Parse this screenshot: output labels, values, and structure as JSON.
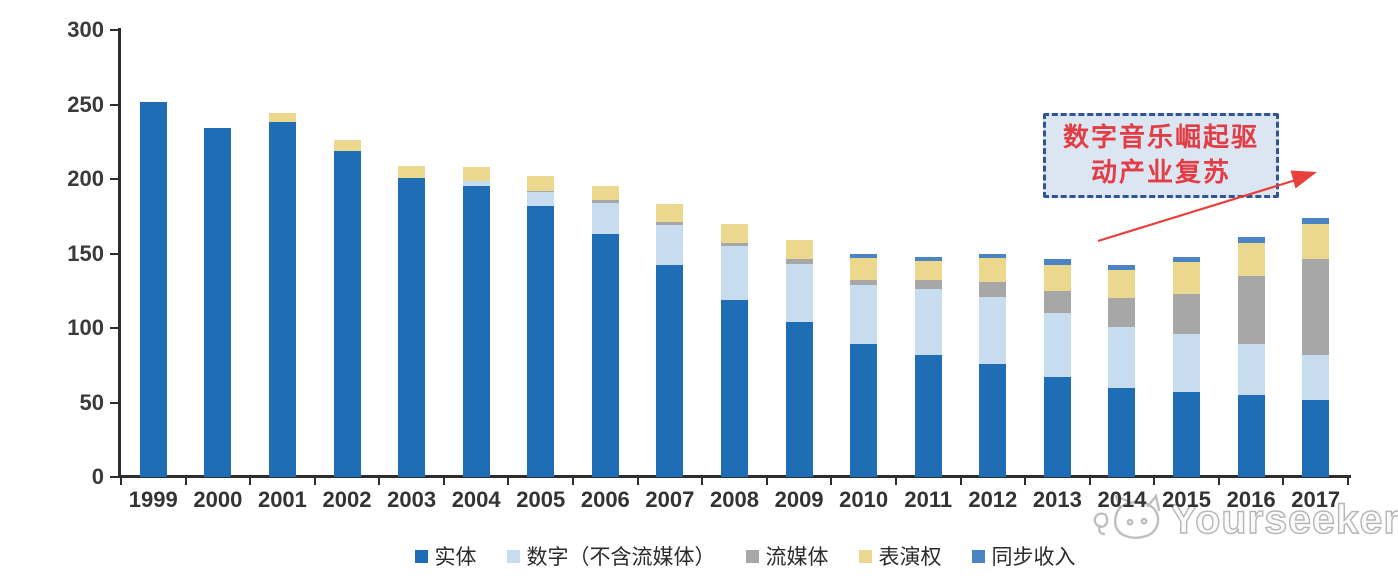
{
  "chart_data": {
    "type": "bar",
    "stacked": true,
    "title": "",
    "xlabel": "",
    "ylabel": "",
    "ylim": [
      0,
      300
    ],
    "yticks": [
      0,
      50,
      100,
      150,
      200,
      250,
      300
    ],
    "grid": false,
    "legend_position": "bottom",
    "categories": [
      "1999",
      "2000",
      "2001",
      "2002",
      "2003",
      "2004",
      "2005",
      "2006",
      "2007",
      "2008",
      "2009",
      "2010",
      "2011",
      "2012",
      "2013",
      "2014",
      "2015",
      "2016",
      "2017"
    ],
    "series": [
      {
        "key": "physical",
        "name": "实体",
        "color": "#1f6db4",
        "values": [
          252,
          234,
          238,
          219,
          201,
          195,
          182,
          163,
          142,
          119,
          104,
          89,
          82,
          76,
          67,
          60,
          57,
          55,
          52
        ]
      },
      {
        "key": "digital-excl-streaming",
        "name": "数字（不含流媒体）",
        "color": "#c8dcf0",
        "values": [
          0,
          0,
          0,
          0,
          0,
          4,
          9,
          21,
          27,
          36,
          39,
          40,
          44,
          45,
          43,
          41,
          39,
          34,
          30
        ]
      },
      {
        "key": "streaming",
        "name": "流媒体",
        "color": "#a7a7a7",
        "values": [
          0,
          0,
          0,
          0,
          0,
          0,
          1,
          2,
          2,
          2,
          3,
          3,
          6,
          10,
          15,
          19,
          27,
          46,
          64
        ]
      },
      {
        "key": "performance-rights",
        "name": "表演权",
        "color": "#ebd78e",
        "values": [
          0,
          0,
          6,
          7,
          8,
          9,
          10,
          9,
          12,
          13,
          13,
          15,
          13,
          16,
          17,
          19,
          21,
          22,
          24
        ]
      },
      {
        "key": "sync-revenue",
        "name": "同步收入",
        "color": "#4a84c4",
        "values": [
          0,
          0,
          0,
          0,
          0,
          0,
          0,
          0,
          0,
          0,
          0,
          3,
          3,
          3,
          4,
          3,
          4,
          4,
          4
        ]
      }
    ]
  },
  "annotation": {
    "line1": "数字音乐崛起驱",
    "line2": "动产业复苏",
    "box_fill": "#dce6f2",
    "box_border": "#2f5597",
    "text_color": "#e23c44",
    "arrow_color": "#e8403d"
  },
  "watermark": {
    "text": "Yourseeker"
  }
}
